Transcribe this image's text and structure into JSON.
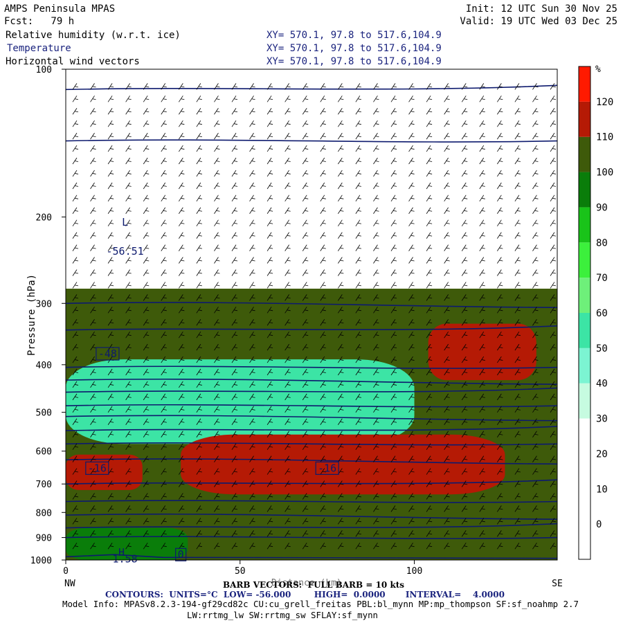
{
  "header": {
    "model": "AMPS Peninsula MPAS",
    "init": "Init: 12 UTC Sun 30 Nov 25",
    "fcst": "Fcst:   79 h",
    "valid": "Valid: 19 UTC Wed 03 Dec 25",
    "fields": [
      {
        "name": "Relative humidity (w.r.t. ice)",
        "xy": "XY= 570.1, 97.8 to 517.6,104.9",
        "color": "#000000"
      },
      {
        "name": "Temperature",
        "xy": "XY= 570.1, 97.8 to 517.6,104.9",
        "color": "#1a237e"
      },
      {
        "name": "Horizontal wind vectors",
        "xy": "XY= 570.1, 97.8 to 517.6,104.9",
        "color": "#000000"
      }
    ]
  },
  "footer": {
    "barb": "BARB VECTORS:  FULL BARB = 10 kts",
    "xlabel_overlap": "Distance (km)",
    "contours": "CONTOURS:  UNITS=°C  LOW= -56.000        HIGH=  0.0000       INTERVAL=    4.0000",
    "model_info": "Model Info: MPASv8.2.3-194-gf29cd82c CU:cu_grell_freitas PBL:bl_mynn MP:mp_thompson SF:sf_noahmp 2.7",
    "model_info2": "LW:rrtmg_lw SW:rrtmg_sw SFLAY:sf_mynn"
  },
  "chart_data": {
    "type": "heatmap",
    "title": "Relative humidity (w.r.t. ice), Temperature, Horizontal wind vectors",
    "xlabel": "Distance (km)",
    "ylabel": "Pressure (hPa)",
    "x_range": [
      0,
      141
    ],
    "y_range": [
      1000,
      100
    ],
    "y_scale": "log",
    "xticks": [
      0,
      50,
      100
    ],
    "yticks": [
      100,
      200,
      300,
      400,
      500,
      600,
      700,
      800,
      900,
      1000
    ],
    "x_end_labels": {
      "left": "NW",
      "right": "SE"
    },
    "colorbar": {
      "unit": "%",
      "labels": [
        0,
        10,
        20,
        30,
        40,
        50,
        60,
        70,
        80,
        90,
        100,
        110,
        120
      ],
      "bins": [
        {
          "from": -10,
          "to": 20,
          "color": "#ffffff"
        },
        {
          "from": 20,
          "to": 30,
          "color": "#ffffff"
        },
        {
          "from": 30,
          "to": 40,
          "color": "#c6fbe0"
        },
        {
          "from": 40,
          "to": 50,
          "color": "#7cf4d2"
        },
        {
          "from": 50,
          "to": 60,
          "color": "#3ce4a5"
        },
        {
          "from": 60,
          "to": 70,
          "color": "#6ef07a"
        },
        {
          "from": 70,
          "to": 80,
          "color": "#3cf03c"
        },
        {
          "from": 80,
          "to": 90,
          "color": "#19c319"
        },
        {
          "from": 90,
          "to": 100,
          "color": "#0a7d0a"
        },
        {
          "from": 100,
          "to": 110,
          "color": "#3e5a0a"
        },
        {
          "from": 110,
          "to": 120,
          "color": "#b51a05"
        },
        {
          "from": 120,
          "to": 130,
          "color": "#ff1a00"
        }
      ]
    },
    "rh_regions": [
      {
        "label": "upper-dry",
        "rh": 20,
        "x": [
          0,
          141
        ],
        "p": [
          100,
          280
        ]
      },
      {
        "label": "mid-moist",
        "rh": 105,
        "x": [
          0,
          141
        ],
        "p": [
          280,
          1000
        ]
      },
      {
        "label": "dry-tongue",
        "rh": 55,
        "x": [
          0,
          100
        ],
        "p": [
          390,
          580
        ]
      },
      {
        "label": "saturated-west",
        "rh": 115,
        "x": [
          0,
          22
        ],
        "p": [
          610,
          720
        ]
      },
      {
        "label": "saturated-center",
        "rh": 115,
        "x": [
          33,
          126
        ],
        "p": [
          555,
          735
        ]
      },
      {
        "label": "saturated-upper-east",
        "rh": 115,
        "x": [
          104,
          135
        ],
        "p": [
          330,
          430
        ]
      },
      {
        "label": "moist-boundary-layer",
        "rh": 92,
        "x": [
          0,
          35
        ],
        "p": [
          860,
          1000
        ]
      }
    ],
    "temperature_isotherms_c": [
      -56,
      -52,
      -48,
      -44,
      -40,
      -36,
      -32,
      -28,
      -24,
      -20,
      -16,
      -12,
      -8,
      -4,
      0
    ],
    "temperature_labels": [
      {
        "text": "L",
        "x": 17,
        "p": 205
      },
      {
        "text": "-56.51",
        "x": 17,
        "p": 235
      },
      {
        "text": "-48",
        "x": 12,
        "p": 380
      },
      {
        "text": "-16",
        "x": 9,
        "p": 650
      },
      {
        "text": "-16",
        "x": 75,
        "p": 650
      },
      {
        "text": "0",
        "x": 33,
        "p": 975
      },
      {
        "text": "H",
        "x": 16,
        "p": 965
      },
      {
        "text": "1.58",
        "x": 17,
        "p": 995
      }
    ],
    "wind_barbs": {
      "direction": "northwesterly",
      "full_barb_kts": 10
    }
  }
}
